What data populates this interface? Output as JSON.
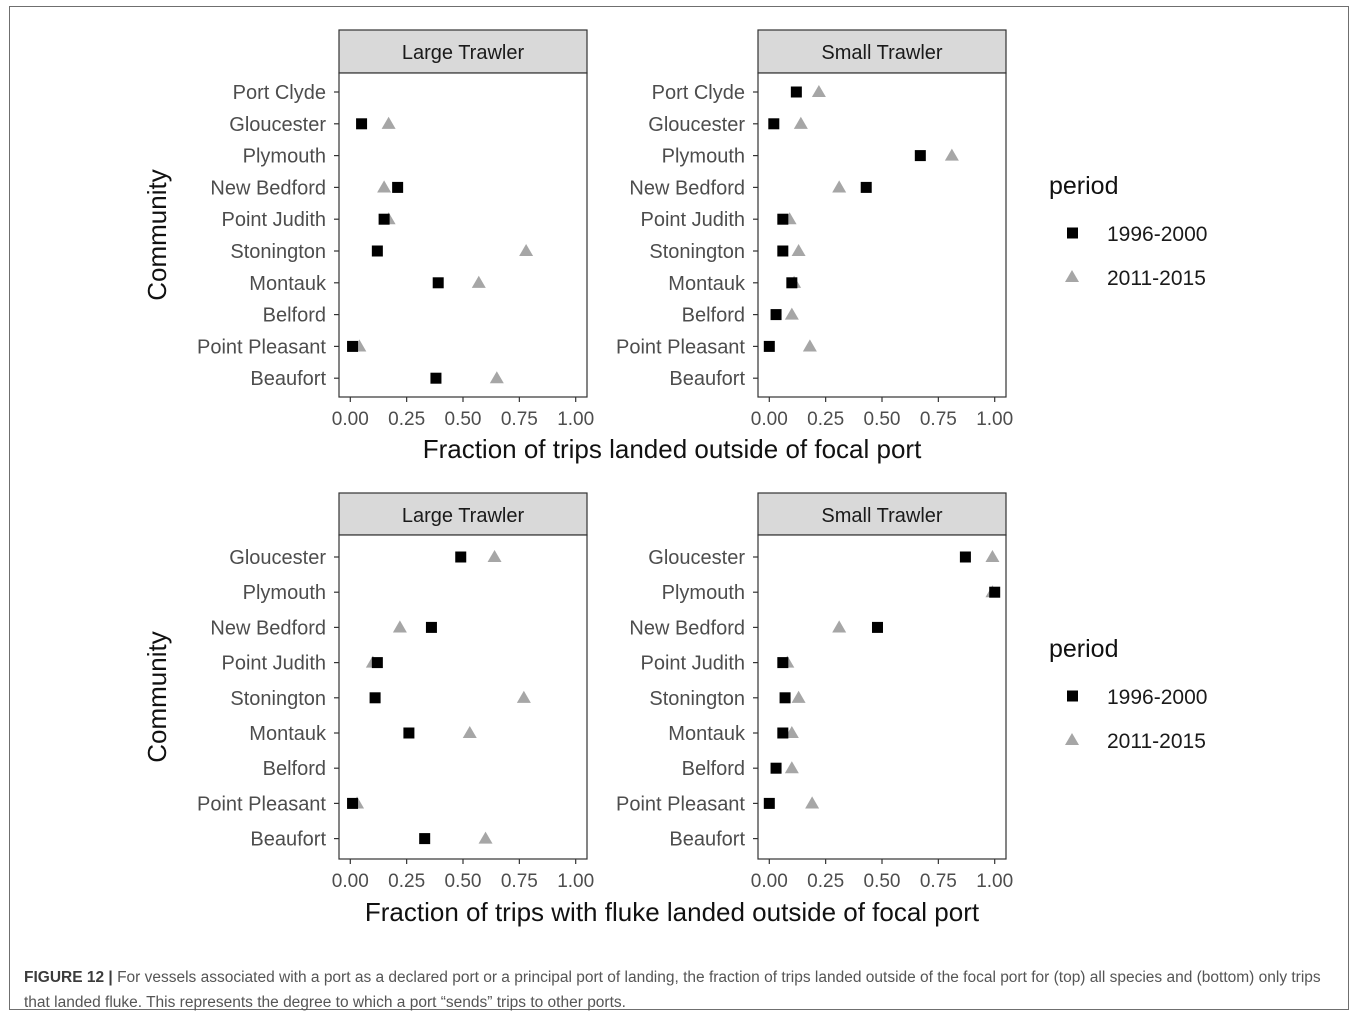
{
  "figure": {
    "caption_label": "FIGURE 12 |",
    "caption_text": "For vessels associated with a port as a declared port or a principal port of landing, the fraction of trips landed outside of the focal port for (top) all species and (bottom) only trips that landed fluke. This represents the degree to which a port “sends” trips to other ports."
  },
  "colors": {
    "series_1996": "#000000",
    "series_2011": "#a6a6a6",
    "strip_fill": "#d9d9d9",
    "panel_border": "#333333",
    "text": "#4d4d4d"
  },
  "chart_data": [
    {
      "type": "scatter",
      "ylabel": "Community",
      "xlabel": "Fraction of trips landed outside of focal port",
      "xlim": [
        0,
        1
      ],
      "x_ticks": [
        "0.00",
        "0.25",
        "0.50",
        "0.75",
        "1.00"
      ],
      "grid": false,
      "legend": {
        "title": "period",
        "position": "right",
        "entries": [
          "1996-2000",
          "2011-2015"
        ]
      },
      "categories": [
        "Port Clyde",
        "Gloucester",
        "Plymouth",
        "New Bedford",
        "Point Judith",
        "Stonington",
        "Montauk",
        "Belford",
        "Point Pleasant",
        "Beaufort"
      ],
      "facets": [
        {
          "label": "Large Trawler",
          "series": [
            {
              "name": "1996-2000",
              "values": [
                null,
                0.05,
                null,
                0.21,
                0.15,
                0.12,
                0.39,
                null,
                0.01,
                0.38
              ]
            },
            {
              "name": "2011-2015",
              "values": [
                null,
                0.17,
                null,
                0.15,
                0.17,
                0.78,
                0.57,
                null,
                0.04,
                0.65
              ]
            }
          ]
        },
        {
          "label": "Small Trawler",
          "series": [
            {
              "name": "1996-2000",
              "values": [
                0.12,
                0.02,
                0.67,
                0.43,
                0.06,
                0.06,
                0.1,
                0.03,
                0.0,
                null
              ]
            },
            {
              "name": "2011-2015",
              "values": [
                0.22,
                0.14,
                0.81,
                0.31,
                0.09,
                0.13,
                0.11,
                0.1,
                0.18,
                null
              ]
            }
          ]
        }
      ]
    },
    {
      "type": "scatter",
      "ylabel": "Community",
      "xlabel": "Fraction of trips with fluke landed outside of focal port",
      "xlim": [
        0,
        1
      ],
      "x_ticks": [
        "0.00",
        "0.25",
        "0.50",
        "0.75",
        "1.00"
      ],
      "grid": false,
      "legend": {
        "title": "period",
        "position": "right",
        "entries": [
          "1996-2000",
          "2011-2015"
        ]
      },
      "categories": [
        "Gloucester",
        "Plymouth",
        "New Bedford",
        "Point Judith",
        "Stonington",
        "Montauk",
        "Belford",
        "Point Pleasant",
        "Beaufort"
      ],
      "facets": [
        {
          "label": "Large Trawler",
          "series": [
            {
              "name": "1996-2000",
              "values": [
                0.49,
                null,
                0.36,
                0.12,
                0.11,
                0.26,
                null,
                0.01,
                0.33
              ]
            },
            {
              "name": "2011-2015",
              "values": [
                0.64,
                null,
                0.22,
                0.1,
                0.77,
                0.53,
                null,
                0.03,
                0.6
              ]
            }
          ]
        },
        {
          "label": "Small Trawler",
          "series": [
            {
              "name": "1996-2000",
              "values": [
                0.87,
                1.0,
                0.48,
                0.06,
                0.07,
                0.06,
                0.03,
                0.0,
                null
              ]
            },
            {
              "name": "2011-2015",
              "values": [
                0.99,
                0.99,
                0.31,
                0.08,
                0.13,
                0.1,
                0.1,
                0.19,
                null
              ]
            }
          ]
        }
      ]
    }
  ]
}
